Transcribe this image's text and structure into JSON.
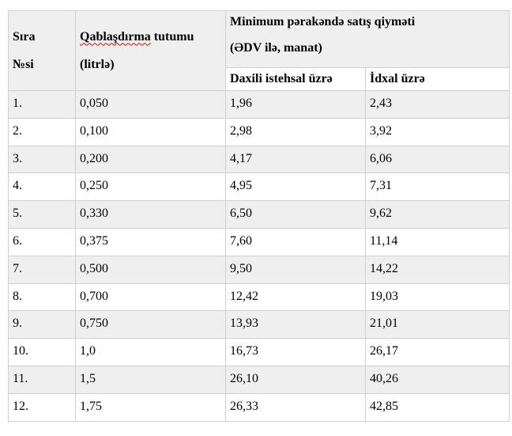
{
  "page": {
    "background_color": "#ffffff",
    "text_color": "#000000"
  },
  "table": {
    "stripe_bg_color": "#efefef",
    "header_bg_color": "#efefef",
    "border_color": "#d0d0d0",
    "spellcheck_underline_color": "#e60000",
    "headers": {
      "serial_line1": "Sıra",
      "serial_line2": "№si",
      "capacity_word_misspelled": "Qablaşdırma",
      "capacity_rest": " tutumu",
      "capacity_line2": "(litrlə)",
      "price_group_line1": "Minimum pərakəndə satış qiyməti",
      "price_group_line2": "(ƏDV ilə, manat)",
      "domestic": "Daxili istehsal üzrə",
      "import": "İdxal üzrə"
    },
    "rows": [
      {
        "no": "1.",
        "capacity": "0,050",
        "domestic": "1,96",
        "import": "2,43"
      },
      {
        "no": "2.",
        "capacity": "0,100",
        "domestic": "2,98",
        "import": "3,92"
      },
      {
        "no": "3.",
        "capacity": "0,200",
        "domestic": "4,17",
        "import": "6,06"
      },
      {
        "no": "4.",
        "capacity": "0,250",
        "domestic": "4,95",
        "import": "7,31"
      },
      {
        "no": "5.",
        "capacity": "0,330",
        "domestic": "6,50",
        "import": "9,62"
      },
      {
        "no": "6.",
        "capacity": "0,375",
        "domestic": "7,60",
        "import": "11,14"
      },
      {
        "no": "7.",
        "capacity": "0,500",
        "domestic": "9,50",
        "import": "14,22"
      },
      {
        "no": "8.",
        "capacity": "0,700",
        "domestic": "12,42",
        "import": "19,03"
      },
      {
        "no": "9.",
        "capacity": "0,750",
        "domestic": "13,93",
        "import": "21,01"
      },
      {
        "no": "10.",
        "capacity": "1,0",
        "domestic": "16,73",
        "import": "26,17"
      },
      {
        "no": "11.",
        "capacity": "1,5",
        "domestic": "26,10",
        "import": "40,26"
      },
      {
        "no": "12.",
        "capacity": "1,75",
        "domestic": "26,33",
        "import": "42,85"
      }
    ]
  }
}
